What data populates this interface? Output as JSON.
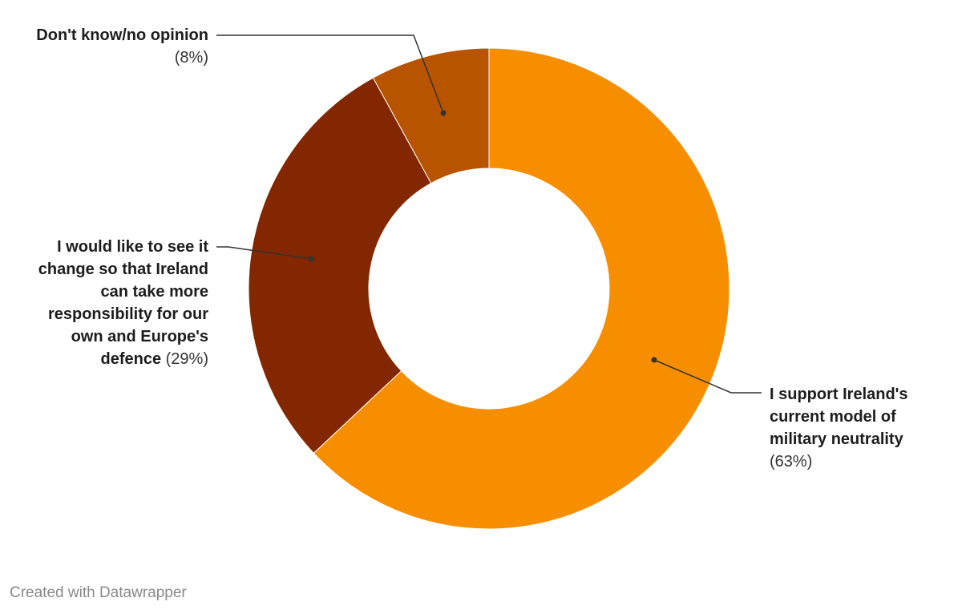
{
  "chart_data": {
    "type": "donut",
    "categories": [
      "I support Ireland's current model of military neutrality",
      "I would like to see it change so that Ireland can take more responsibility for our own and Europe's defence",
      "Don't know/no opinion"
    ],
    "values": [
      63,
      29,
      8
    ],
    "value_labels": [
      "(63%)",
      "(29%)",
      "(8%)"
    ],
    "colors": [
      "#f78e00",
      "#832700",
      "#b85300"
    ],
    "footer": "Created with Datawrapper"
  }
}
